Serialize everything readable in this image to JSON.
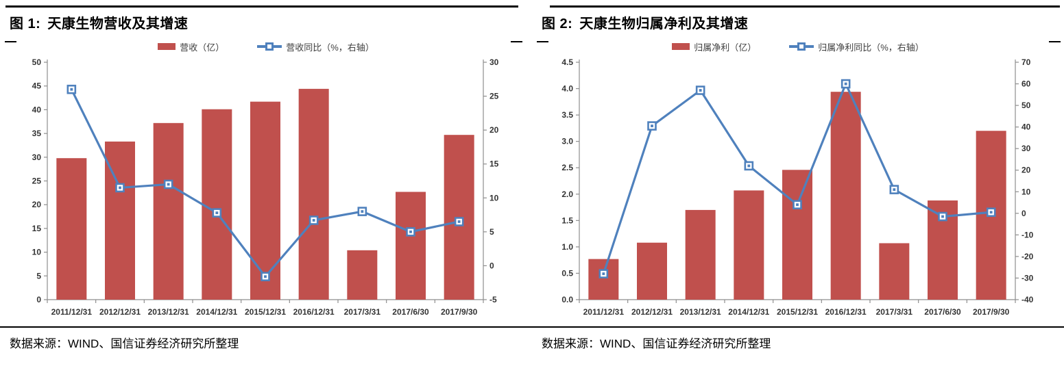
{
  "figures": [
    {
      "number_label": "图 1:",
      "title": "天康生物营收及其增速",
      "legend_bar_label": "营收（亿）",
      "legend_line_label": "营收同比（%，右轴）",
      "source": "数据来源：WIND、国信证券经济研究所整理"
    },
    {
      "number_label": "图 2:",
      "title": "天康生物归属净利及其增速",
      "legend_bar_label": "归属净利（亿）",
      "legend_line_label": "归属净利同比（%，右轴）",
      "source": "数据来源：WIND、国信证券经济研究所整理"
    }
  ],
  "chart_data": [
    {
      "type": "bar+line",
      "title": "天康生物营收及其增速",
      "categories": [
        "2011/12/31",
        "2012/12/31",
        "2013/12/31",
        "2014/12/31",
        "2015/12/31",
        "2016/12/31",
        "2017/3/31",
        "2017/6/30",
        "2017/9/30"
      ],
      "series": [
        {
          "name": "营收（亿）",
          "type": "bar",
          "axis": "left",
          "values": [
            29.8,
            33.3,
            37.2,
            40.1,
            41.7,
            44.4,
            10.4,
            22.7,
            34.7
          ]
        },
        {
          "name": "营收同比（%，右轴）",
          "type": "line",
          "axis": "right",
          "values": [
            26,
            11.5,
            12,
            7.8,
            -1.6,
            6.7,
            8,
            5,
            6.5
          ]
        }
      ],
      "left_axis": {
        "min": 0,
        "max": 50,
        "step": 5,
        "decimals": 0
      },
      "right_axis": {
        "min": -5,
        "max": 30,
        "step": 5,
        "decimals": 0
      },
      "legend_position": "top",
      "grid": false
    },
    {
      "type": "bar+line",
      "title": "天康生物归属净利及其增速",
      "categories": [
        "2011/12/31",
        "2012/12/31",
        "2013/12/31",
        "2014/12/31",
        "2015/12/31",
        "2016/12/31",
        "2017/3/31",
        "2017/6/30",
        "2017/9/30"
      ],
      "series": [
        {
          "name": "归属净利（亿）",
          "type": "bar",
          "axis": "left",
          "values": [
            0.77,
            1.08,
            1.7,
            2.07,
            2.46,
            3.94,
            1.07,
            1.88,
            3.2
          ]
        },
        {
          "name": "归属净利同比（%，右轴）",
          "type": "line",
          "axis": "right",
          "values": [
            -28,
            40.5,
            57,
            22,
            4,
            60,
            11,
            -1.5,
            0.5
          ]
        }
      ],
      "left_axis": {
        "min": 0,
        "max": 4.5,
        "step": 0.5,
        "decimals": 1
      },
      "right_axis": {
        "min": -40,
        "max": 70,
        "step": 10,
        "decimals": 0
      },
      "legend_position": "top",
      "grid": false
    }
  ],
  "colors": {
    "bar": "#C0504D",
    "line": "#4F81BD",
    "axis_line": "#8E8E8E",
    "tick_label": "#333333",
    "legend_text": "#404040",
    "rule": "#000000"
  }
}
